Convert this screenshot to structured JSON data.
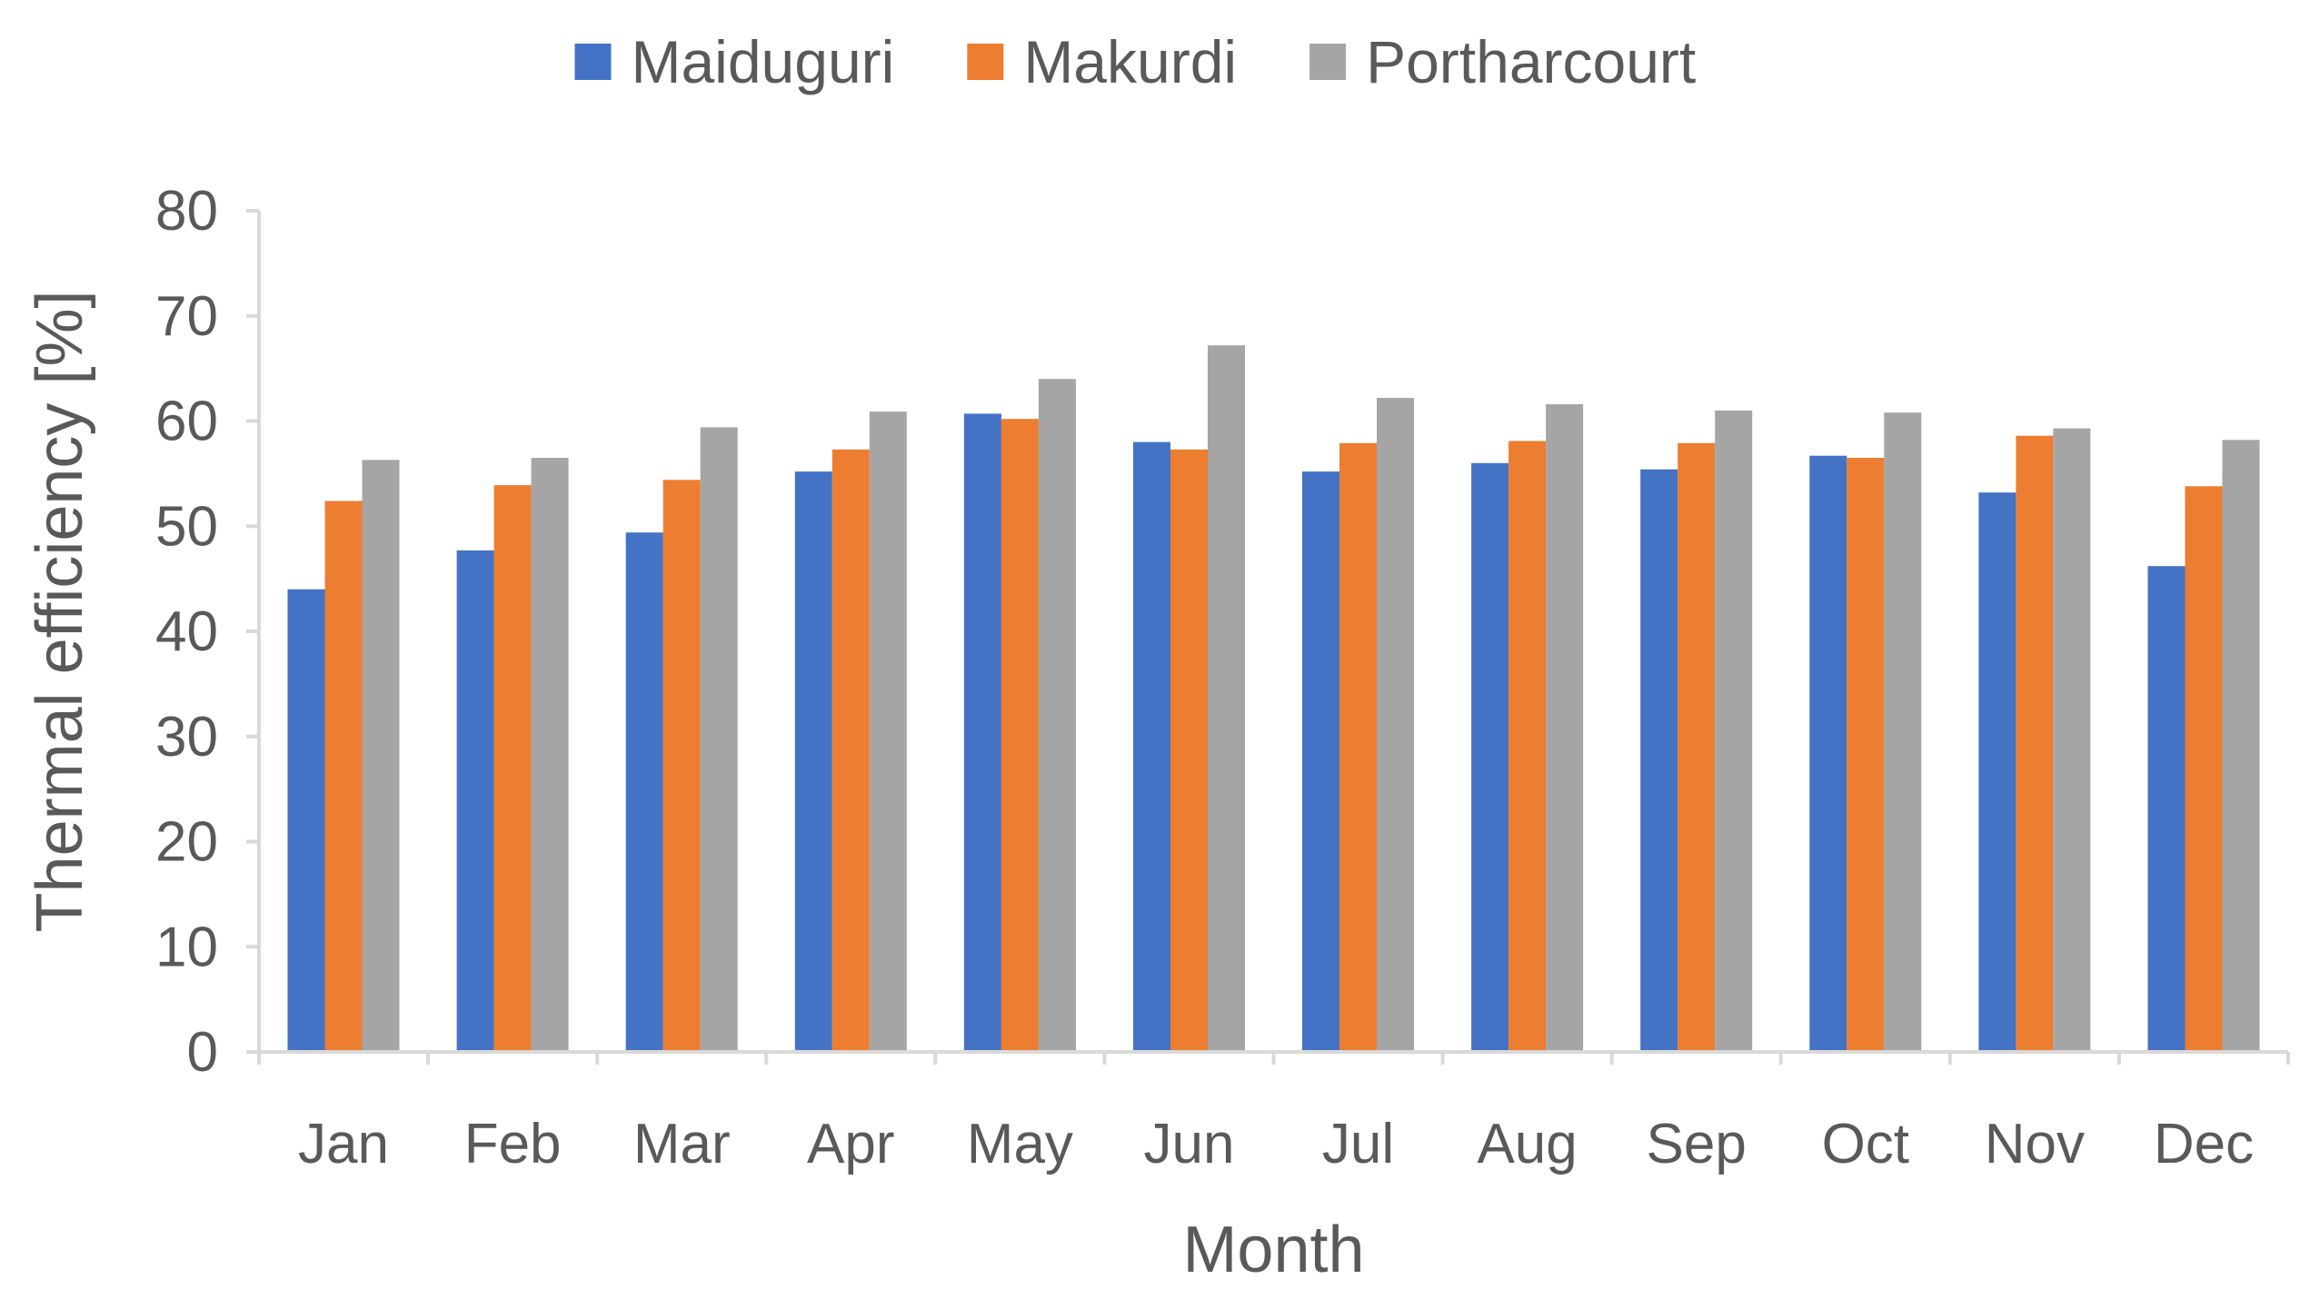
{
  "chart_data": {
    "type": "bar",
    "xlabel": "Month",
    "ylabel": "Thermal efficiency [%]",
    "ylim": [
      0,
      80
    ],
    "yticks": [
      0,
      10,
      20,
      30,
      40,
      50,
      60,
      70,
      80
    ],
    "grid": false,
    "legend_position": "top-center",
    "categories": [
      "Jan",
      "Feb",
      "Mar",
      "Apr",
      "May",
      "Jun",
      "Jul",
      "Aug",
      "Sep",
      "Oct",
      "Nov",
      "Dec"
    ],
    "series": [
      {
        "name": "Maiduguri",
        "color": "#4472C4",
        "values": [
          44.0,
          47.7,
          49.4,
          55.2,
          60.7,
          58.0,
          55.2,
          56.0,
          55.4,
          56.7,
          53.2,
          46.2
        ]
      },
      {
        "name": "Makurdi",
        "color": "#ED7D31",
        "values": [
          52.4,
          53.9,
          54.4,
          57.3,
          60.2,
          57.3,
          57.9,
          58.1,
          57.9,
          56.5,
          58.6,
          53.8
        ]
      },
      {
        "name": "Portharcourt",
        "color": "#A5A5A5",
        "values": [
          56.3,
          56.5,
          59.4,
          60.9,
          64.0,
          67.2,
          62.2,
          61.6,
          61.0,
          60.8,
          59.3,
          58.2
        ]
      }
    ]
  }
}
